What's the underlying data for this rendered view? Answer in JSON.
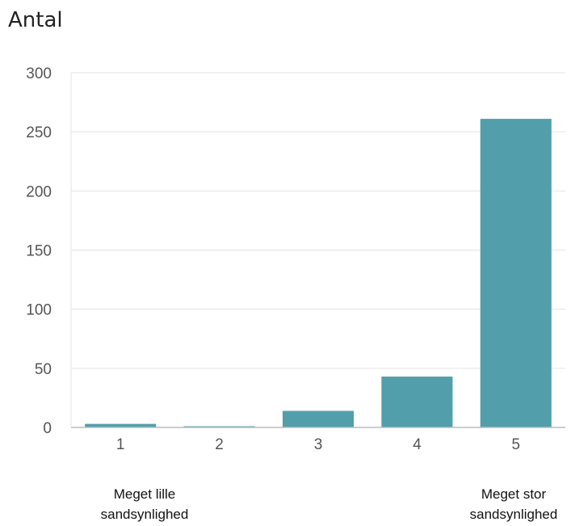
{
  "chart_data": {
    "type": "bar",
    "title": "Antal",
    "categories": [
      "1",
      "2",
      "3",
      "4",
      "5"
    ],
    "values": [
      3,
      1,
      14,
      43,
      261
    ],
    "ylim": [
      0,
      300
    ],
    "yticks": [
      0,
      50,
      100,
      150,
      200,
      250,
      300
    ],
    "grid": true,
    "colors": {
      "bar": "#529fab",
      "grid": "#e3e3e3",
      "axis": "#bbbbbb"
    },
    "annotations": {
      "low": [
        "Meget lille",
        "sandsynlighed"
      ],
      "high": [
        "Meget stor",
        "sandsynlighed"
      ]
    }
  }
}
